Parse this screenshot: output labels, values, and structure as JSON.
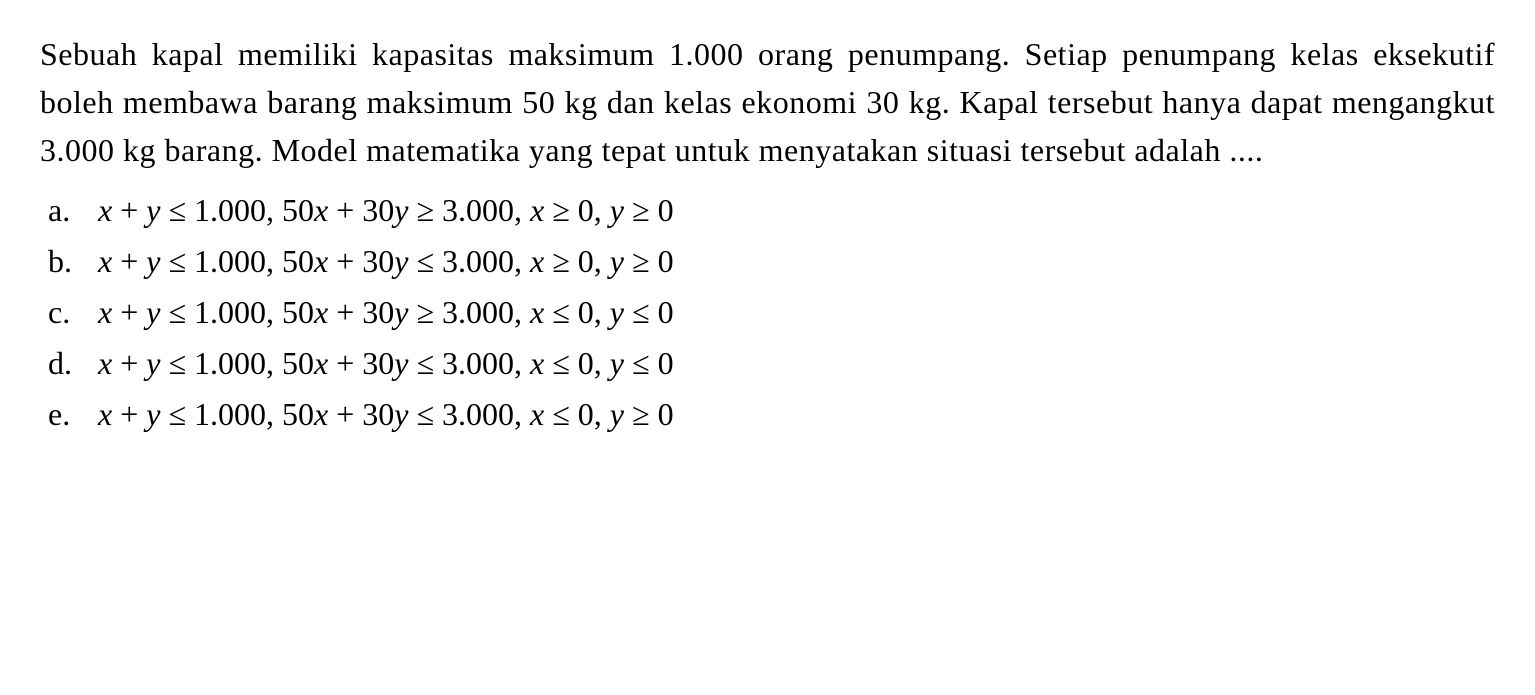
{
  "question": {
    "text": "Sebuah kapal memiliki kapasitas maksimum 1.000 orang penumpang. Setiap penumpang kelas eksekutif boleh membawa barang maksimum 50 kg dan kelas ekonomi 30 kg. Kapal tersebut hanya dapat mengangkut 3.000 kg barang. Model matematika yang tepat untuk menyatakan situasi tersebut adalah ....",
    "font_size": 32,
    "color": "#000000",
    "background_color": "#ffffff"
  },
  "options": [
    {
      "letter": "a.",
      "expr_parts": {
        "p1": "x + y ≤ 1.000, 50x + 30y ≥ 3.000, x ≥ 0, y ≥ 0"
      }
    },
    {
      "letter": "b.",
      "expr_parts": {
        "p1": "x + y ≤ 1.000, 50x + 30y ≤ 3.000, x ≥ 0, y ≥ 0"
      }
    },
    {
      "letter": "c.",
      "expr_parts": {
        "p1": "x + y ≤ 1.000, 50x + 30y ≥ 3.000, x ≤ 0, y ≤ 0"
      }
    },
    {
      "letter": "d.",
      "expr_parts": {
        "p1": "x + y ≤ 1.000, 50x + 30y ≤ 3.000, x ≤ 0, y ≤ 0"
      }
    },
    {
      "letter": "e.",
      "expr_parts": {
        "p1": "x + y ≤ 1.000, 50x + 30y ≤ 3.000, x ≤ 0, y ≥ 0"
      }
    }
  ],
  "styling": {
    "font_family": "Georgia, Times New Roman, serif",
    "option_font_size": 32,
    "line_height": 1.5,
    "letter_column_width": 50,
    "option_spacing": 14,
    "padding": "30px 40px"
  }
}
